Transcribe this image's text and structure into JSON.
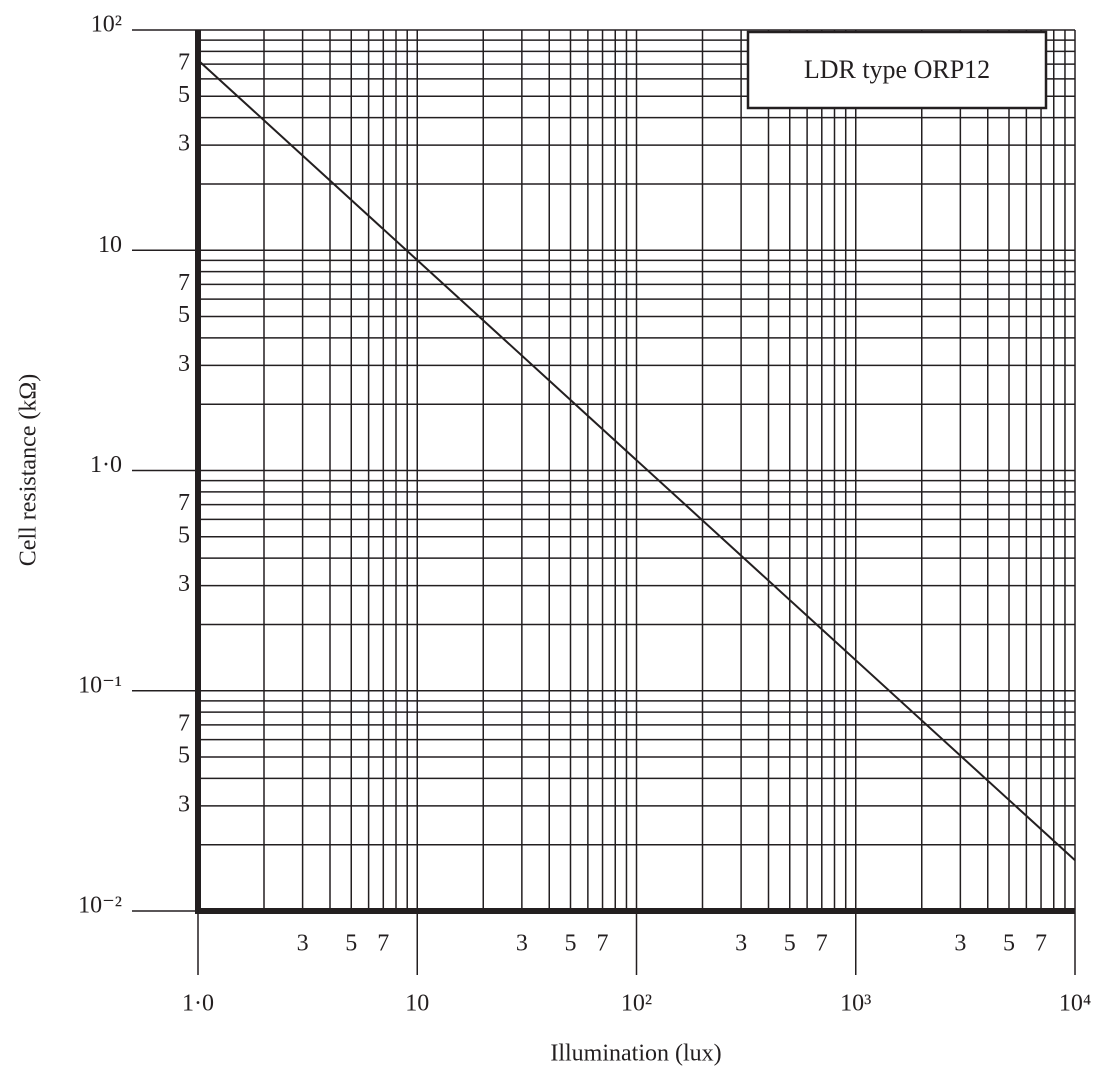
{
  "chart_data": {
    "type": "line",
    "annotation": "LDR type ORP12",
    "xlabel": "Illumination (lux)",
    "ylabel": "Cell resistance (kΩ)",
    "xlog": true,
    "ylog": true,
    "grid": true,
    "xlim": [
      1,
      10000
    ],
    "ylim": [
      0.01,
      100
    ],
    "xticks": [
      {
        "value": 1,
        "label": "1·0"
      },
      10,
      {
        "value": 100,
        "label": "10²"
      },
      {
        "value": 1000,
        "label": "10³"
      },
      {
        "value": 10000,
        "label": "10⁴"
      }
    ],
    "x_minor_ticks": [
      {
        "value": 3,
        "label": "3"
      },
      {
        "value": 5,
        "label": "5"
      },
      {
        "value": 7,
        "label": "7"
      },
      {
        "value": 30,
        "label": "3"
      },
      {
        "value": 50,
        "label": "5"
      },
      {
        "value": 70,
        "label": "7"
      },
      {
        "value": 300,
        "label": "3"
      },
      {
        "value": 500,
        "label": "5"
      },
      {
        "value": 700,
        "label": "7"
      },
      {
        "value": 3000,
        "label": "3"
      },
      {
        "value": 5000,
        "label": "5"
      },
      {
        "value": 7000,
        "label": "7"
      }
    ],
    "x_grid": [
      2,
      4,
      6,
      8,
      9,
      20,
      40,
      60,
      80,
      90,
      200,
      400,
      600,
      800,
      900,
      2000,
      4000,
      6000,
      8000,
      9000
    ],
    "yticks": [
      {
        "value": 0.01,
        "label": "10⁻²"
      },
      {
        "value": 0.1,
        "label": "10⁻¹"
      },
      {
        "value": 1,
        "label": "1·0"
      },
      10,
      {
        "value": 100,
        "label": "10²"
      }
    ],
    "y_minor_ticks": [
      {
        "value": 0.03,
        "label": "3"
      },
      {
        "value": 0.05,
        "label": "5"
      },
      {
        "value": 0.07,
        "label": "7"
      },
      {
        "value": 0.3,
        "label": "3"
      },
      {
        "value": 0.5,
        "label": "5"
      },
      {
        "value": 0.7,
        "label": "7"
      },
      {
        "value": 3,
        "label": "3"
      },
      {
        "value": 5,
        "label": "5"
      },
      {
        "value": 7,
        "label": "7"
      },
      {
        "value": 30,
        "label": "3"
      },
      {
        "value": 50,
        "label": "5"
      },
      {
        "value": 70,
        "label": "7"
      }
    ],
    "y_grid": [
      0.02,
      0.04,
      0.06,
      0.08,
      0.09,
      0.2,
      0.4,
      0.6,
      0.8,
      0.9,
      2,
      4,
      6,
      8,
      9,
      20,
      40,
      60,
      80,
      90
    ],
    "series": [
      {
        "color": "#231f20",
        "x": [
          1,
          10000
        ],
        "values": [
          73,
          0.017
        ]
      }
    ]
  }
}
